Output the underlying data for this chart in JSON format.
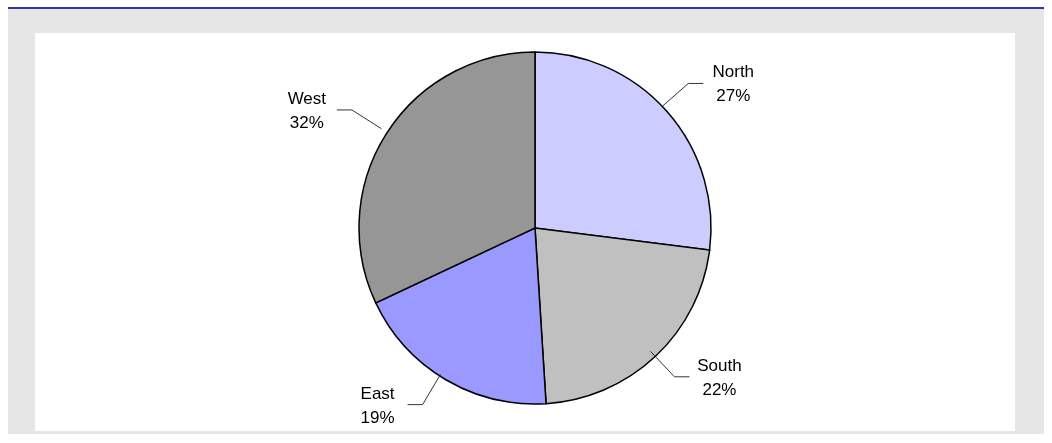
{
  "chart_data": {
    "type": "pie",
    "categories": [
      "North",
      "South",
      "East",
      "West"
    ],
    "values": [
      27,
      22,
      19,
      32
    ],
    "value_labels": [
      "27%",
      "22%",
      "19%",
      "32%"
    ],
    "colors": [
      "#ccccff",
      "#c0c0c0",
      "#9999ff",
      "#969696"
    ],
    "legend": false
  }
}
